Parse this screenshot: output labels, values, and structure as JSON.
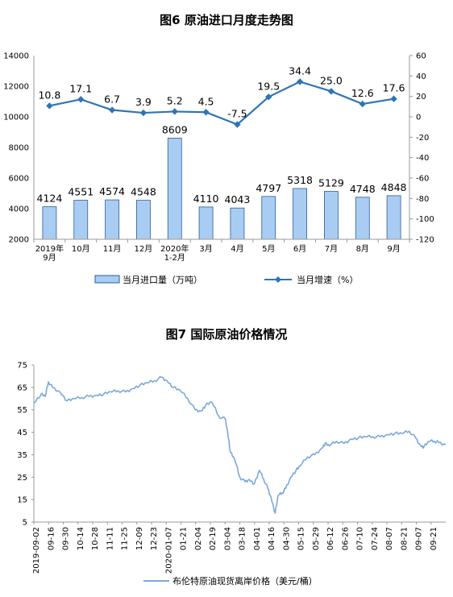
{
  "colors": {
    "bar_fill": "#a9cdf2",
    "bar_stroke": "#2a5c9a",
    "growth_line": "#2e75b6",
    "price_line": "#7ba8d9",
    "axis": "#999999"
  },
  "chart_data": [
    {
      "type": "bar",
      "title": "图6  原油进口月度走势图",
      "categories": [
        [
          "2019年",
          "9月"
        ],
        [
          "10月"
        ],
        [
          "11月"
        ],
        [
          "12月"
        ],
        [
          "2020年",
          "1-2月"
        ],
        [
          "3月"
        ],
        [
          "4月"
        ],
        [
          "5月"
        ],
        [
          "6月"
        ],
        [
          "7月"
        ],
        [
          "8月"
        ],
        [
          "9月"
        ]
      ],
      "series": [
        {
          "name": "当月进口量（万吨）",
          "type": "bar",
          "axis": "left",
          "values": [
            4124,
            4551,
            4574,
            4548,
            8609,
            4110,
            4043,
            4797,
            5318,
            5129,
            4748,
            4848
          ]
        },
        {
          "name": "当月增速（%）",
          "type": "line",
          "axis": "right",
          "values": [
            10.8,
            17.1,
            6.7,
            3.9,
            5.2,
            4.5,
            -7.5,
            19.5,
            34.4,
            25.0,
            12.6,
            17.6
          ]
        }
      ],
      "data_labels_bar": [
        "4124",
        "4551",
        "4574",
        "4548",
        "8609",
        "4110",
        "4043",
        "4797",
        "5318",
        "5129",
        "4748",
        "4848"
      ],
      "data_labels_line": [
        "10.8",
        "17.1",
        "6.7",
        "3.9",
        "5.2",
        "4.5",
        "-7.5",
        "19.5",
        "34.4",
        "25.0",
        "12.6",
        "17.6"
      ],
      "y_left": {
        "ylim": [
          2000,
          14000
        ],
        "ticks": [
          "2000",
          "4000",
          "6000",
          "8000",
          "10000",
          "12000",
          "14000"
        ]
      },
      "y_right": {
        "ylim": [
          -120,
          60
        ],
        "ticks": [
          "-120",
          "-100",
          "-80",
          "-60",
          "-40",
          "-20",
          "0",
          "20",
          "40",
          "60"
        ]
      },
      "legend": [
        "当月进口量（万吨）",
        "当月增速（%）"
      ],
      "legend_position": "bottom"
    },
    {
      "type": "line",
      "title": "图7  国际原油价格情况",
      "ylim": [
        5,
        75
      ],
      "yticks": [
        "5",
        "15",
        "25",
        "35",
        "45",
        "55",
        "65",
        "75"
      ],
      "xlim": [
        "2019-09-02",
        "2020-10-02"
      ],
      "x_ticks": [
        "2019-09-02",
        "09-16",
        "09-30",
        "10-14",
        "10-28",
        "11-11",
        "11-25",
        "12-09",
        "12-23",
        "2020-01-07",
        "01-21",
        "02-04",
        "02-19",
        "03-04",
        "03-18",
        "04-01",
        "04-16",
        "04-30",
        "05-15",
        "05-29",
        "06-12",
        "06-26",
        "07-10",
        "07-24",
        "08-07",
        "08-21",
        "09-07",
        "09-21"
      ],
      "series": [
        {
          "name": "布伦特原油现货离岸价格（美元/桶）",
          "x": [
            "2019-09-02",
            "2019-09-09",
            "2019-09-13",
            "2019-09-16",
            "2019-09-20",
            "2019-09-27",
            "2019-10-04",
            "2019-10-11",
            "2019-10-18",
            "2019-10-25",
            "2019-11-01",
            "2019-11-08",
            "2019-11-15",
            "2019-11-22",
            "2019-11-29",
            "2019-12-06",
            "2019-12-13",
            "2019-12-20",
            "2019-12-27",
            "2020-01-03",
            "2020-01-08",
            "2020-01-14",
            "2020-01-21",
            "2020-01-28",
            "2020-02-04",
            "2020-02-10",
            "2020-02-14",
            "2020-02-20",
            "2020-02-27",
            "2020-03-04",
            "2020-03-06",
            "2020-03-09",
            "2020-03-13",
            "2020-03-18",
            "2020-03-23",
            "2020-03-27",
            "2020-04-01",
            "2020-04-06",
            "2020-04-10",
            "2020-04-14",
            "2020-04-17",
            "2020-04-21",
            "2020-04-24",
            "2020-04-28",
            "2020-05-01",
            "2020-05-06",
            "2020-05-11",
            "2020-05-15",
            "2020-05-22",
            "2020-05-29",
            "2020-06-05",
            "2020-06-08",
            "2020-06-12",
            "2020-06-19",
            "2020-06-26",
            "2020-07-03",
            "2020-07-10",
            "2020-07-17",
            "2020-07-24",
            "2020-07-31",
            "2020-08-07",
            "2020-08-14",
            "2020-08-21",
            "2020-08-28",
            "2020-09-03",
            "2020-09-08",
            "2020-09-11",
            "2020-09-16",
            "2020-09-21",
            "2020-09-25",
            "2020-10-02"
          ],
          "values": [
            58,
            62,
            61,
            67.5,
            65,
            63,
            59,
            60,
            60.5,
            61,
            61.5,
            62,
            63,
            63.5,
            63,
            64.5,
            66,
            67,
            68,
            69.5,
            68,
            65,
            63.5,
            60,
            55,
            54.5,
            57,
            58.5,
            52,
            51,
            46,
            36,
            33,
            25,
            23,
            24,
            22,
            28,
            24,
            20,
            16,
            9,
            17,
            18,
            20,
            25,
            28,
            30,
            34,
            35,
            38,
            40,
            39,
            41,
            40,
            42,
            42.5,
            43,
            43,
            43,
            44,
            44.5,
            44.5,
            45.5,
            42.5,
            39,
            38.5,
            41,
            41,
            40.5,
            39.5
          ]
        }
      ],
      "legend": [
        "布伦特原油现货离岸价格（美元/桶）"
      ],
      "legend_position": "bottom"
    }
  ]
}
